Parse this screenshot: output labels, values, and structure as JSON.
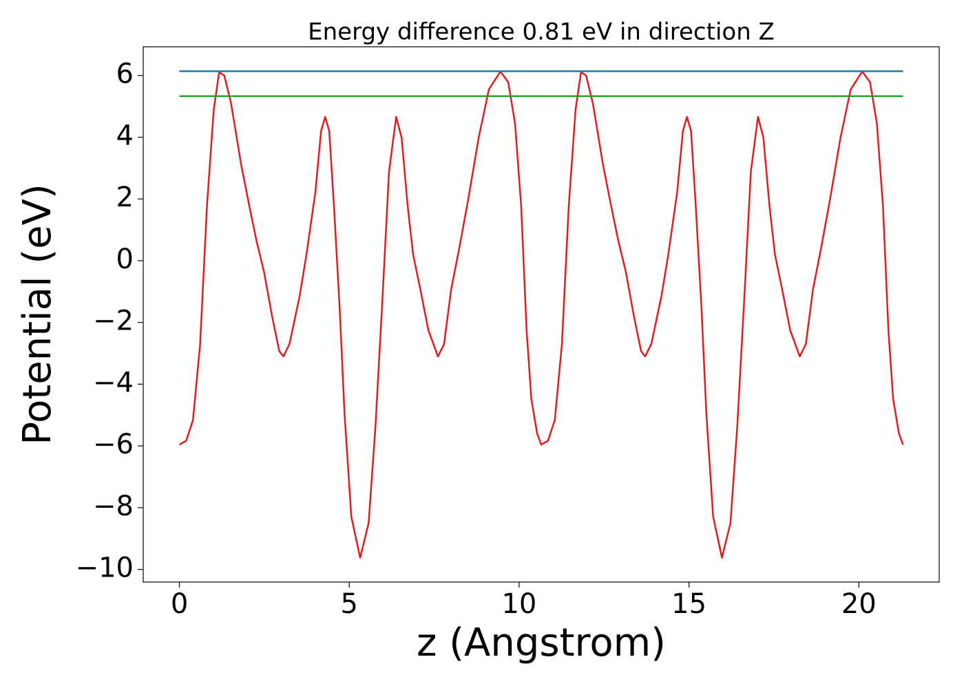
{
  "chart_data": {
    "type": "line",
    "title": "Energy difference 0.81 eV in direction Z",
    "xlabel": "z (Angstrom)",
    "ylabel": "Potential (eV)",
    "xlim": [
      -1.065,
      22.365
    ],
    "ylim": [
      -10.41,
      6.93
    ],
    "xticks": [
      0,
      5,
      10,
      15,
      20
    ],
    "yticks": [
      {
        "value": -10,
        "label": "−10"
      },
      {
        "value": -8,
        "label": "−8"
      },
      {
        "value": -6,
        "label": "−6"
      },
      {
        "value": -4,
        "label": "−4"
      },
      {
        "value": -2,
        "label": "−2"
      },
      0,
      2,
      4,
      6
    ],
    "grid": false,
    "series": [
      {
        "color": "#e41a1c",
        "x": [
          0,
          0.2,
          0.4,
          0.61,
          0.81,
          1.01,
          1.17,
          1.32,
          1.52,
          1.82,
          2.06,
          2.27,
          2.49,
          2.73,
          2.94,
          3.06,
          3.24,
          3.54,
          3.74,
          4.0,
          4.17,
          4.29,
          4.41,
          4.55,
          4.72,
          4.86,
          5.06,
          5.32,
          5.57,
          5.77,
          5.97,
          6.17,
          6.38,
          6.54,
          6.72,
          6.88,
          7.09,
          7.33,
          7.61,
          7.79,
          8.0,
          8.24,
          8.5,
          8.81,
          9.11,
          9.45,
          9.68,
          9.88,
          10.06,
          10.22,
          10.36,
          10.53,
          10.65,
          10.85,
          11.05,
          11.26,
          11.46,
          11.66,
          11.82,
          11.97,
          12.17,
          12.47,
          12.71,
          12.92,
          13.14,
          13.38,
          13.59,
          13.71,
          13.89,
          14.19,
          14.39,
          14.65,
          14.82,
          14.94,
          15.06,
          15.2,
          15.37,
          15.51,
          15.71,
          15.97,
          16.22,
          16.42,
          16.62,
          16.82,
          17.03,
          17.19,
          17.37,
          17.53,
          17.74,
          17.98,
          18.26,
          18.44,
          18.65,
          18.89,
          19.15,
          19.46,
          19.76,
          20.1,
          20.33,
          20.53,
          20.71,
          20.87,
          21.01,
          21.18,
          21.3
        ],
        "values": [
          -5.96,
          -5.83,
          -5.16,
          -2.7,
          1.76,
          4.88,
          6.11,
          6.0,
          5.1,
          3.1,
          1.76,
          0.64,
          -0.36,
          -1.81,
          -2.93,
          -3.1,
          -2.7,
          -1.14,
          0.2,
          2.2,
          4.2,
          4.66,
          4.2,
          1.76,
          -1.59,
          -4.94,
          -8.29,
          -9.62,
          -8.5,
          -5.38,
          -1.37,
          2.88,
          4.66,
          3.99,
          1.76,
          0.2,
          -0.92,
          -2.26,
          -3.1,
          -2.7,
          -0.92,
          0.42,
          1.98,
          3.99,
          5.55,
          6.13,
          5.78,
          4.44,
          1.76,
          -2.26,
          -4.49,
          -5.6,
          -5.96,
          -5.83,
          -5.16,
          -2.7,
          1.76,
          4.88,
          6.11,
          6.0,
          5.1,
          3.1,
          1.76,
          0.64,
          -0.36,
          -1.81,
          -2.93,
          -3.1,
          -2.7,
          -1.14,
          0.2,
          2.2,
          4.2,
          4.66,
          4.2,
          1.76,
          -1.59,
          -4.94,
          -8.29,
          -9.62,
          -8.5,
          -5.38,
          -1.37,
          2.88,
          4.66,
          3.99,
          1.76,
          0.2,
          -0.92,
          -2.26,
          -3.1,
          -2.7,
          -0.92,
          0.42,
          1.98,
          3.99,
          5.55,
          6.13,
          5.78,
          4.44,
          1.76,
          -2.26,
          -4.49,
          -5.6,
          -5.96
        ]
      },
      {
        "color": "#1f77b4",
        "x": [
          0,
          21.3
        ],
        "values": [
          6.14,
          6.14
        ]
      },
      {
        "color": "#2ca02c",
        "x": [
          0,
          21.3
        ],
        "values": [
          5.33,
          5.33
        ]
      }
    ]
  }
}
